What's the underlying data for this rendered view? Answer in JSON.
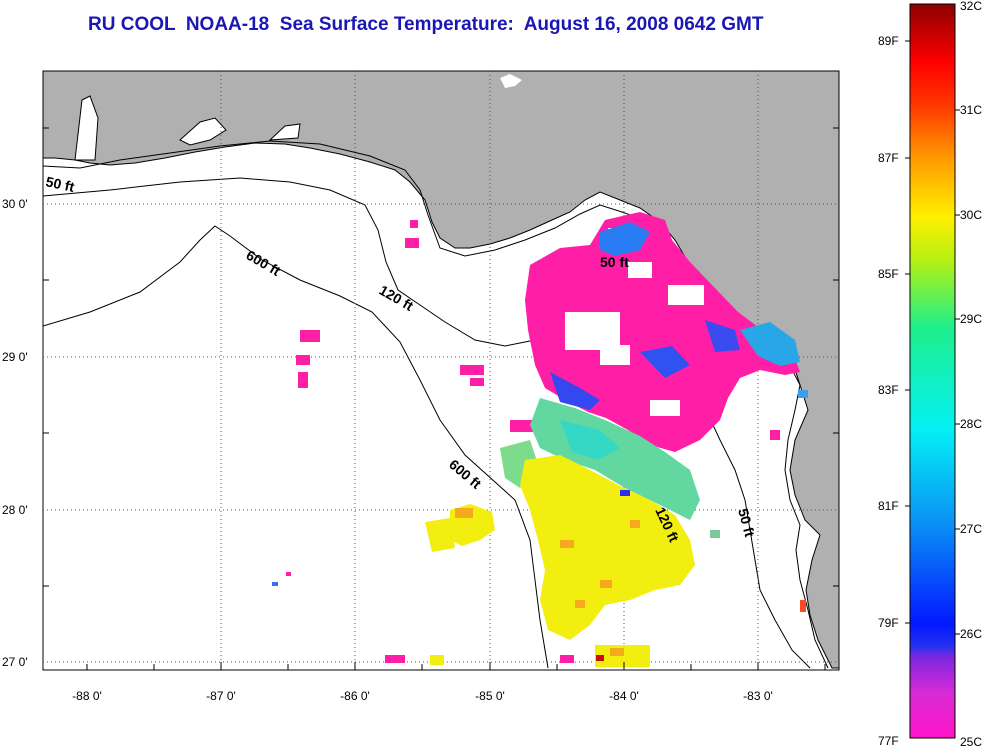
{
  "title": "RU COOL  NOAA-18  Sea Surface Temperature:  August 16, 2008 0642 GMT",
  "map": {
    "lon_labels": [
      "-88 0'",
      "-87 0'",
      "-86 0'",
      "-85 0'",
      "-84 0'",
      "-83 0'"
    ],
    "lat_labels": [
      "30 0'",
      "29 0'",
      "28 0'",
      "27 0'"
    ],
    "isobath_labels": [
      "50 ft",
      "600 ft",
      "120 ft",
      "50 ft",
      "600 ft",
      "120 ft",
      "50 ft"
    ],
    "colors": {
      "land": "#b0b0b0",
      "ocean": "#ffffff",
      "cool_patch": "#ff1ea6",
      "warm_patch": "#f2ee10"
    }
  },
  "colorbar": {
    "celsius_labels": [
      "32C",
      "31C",
      "30C",
      "29C",
      "28C",
      "27C",
      "26C",
      "25C"
    ],
    "fahrenheit_labels": [
      "89F",
      "87F",
      "85F",
      "83F",
      "81F",
      "79F",
      "77F"
    ],
    "range_c": [
      25,
      32
    ]
  }
}
